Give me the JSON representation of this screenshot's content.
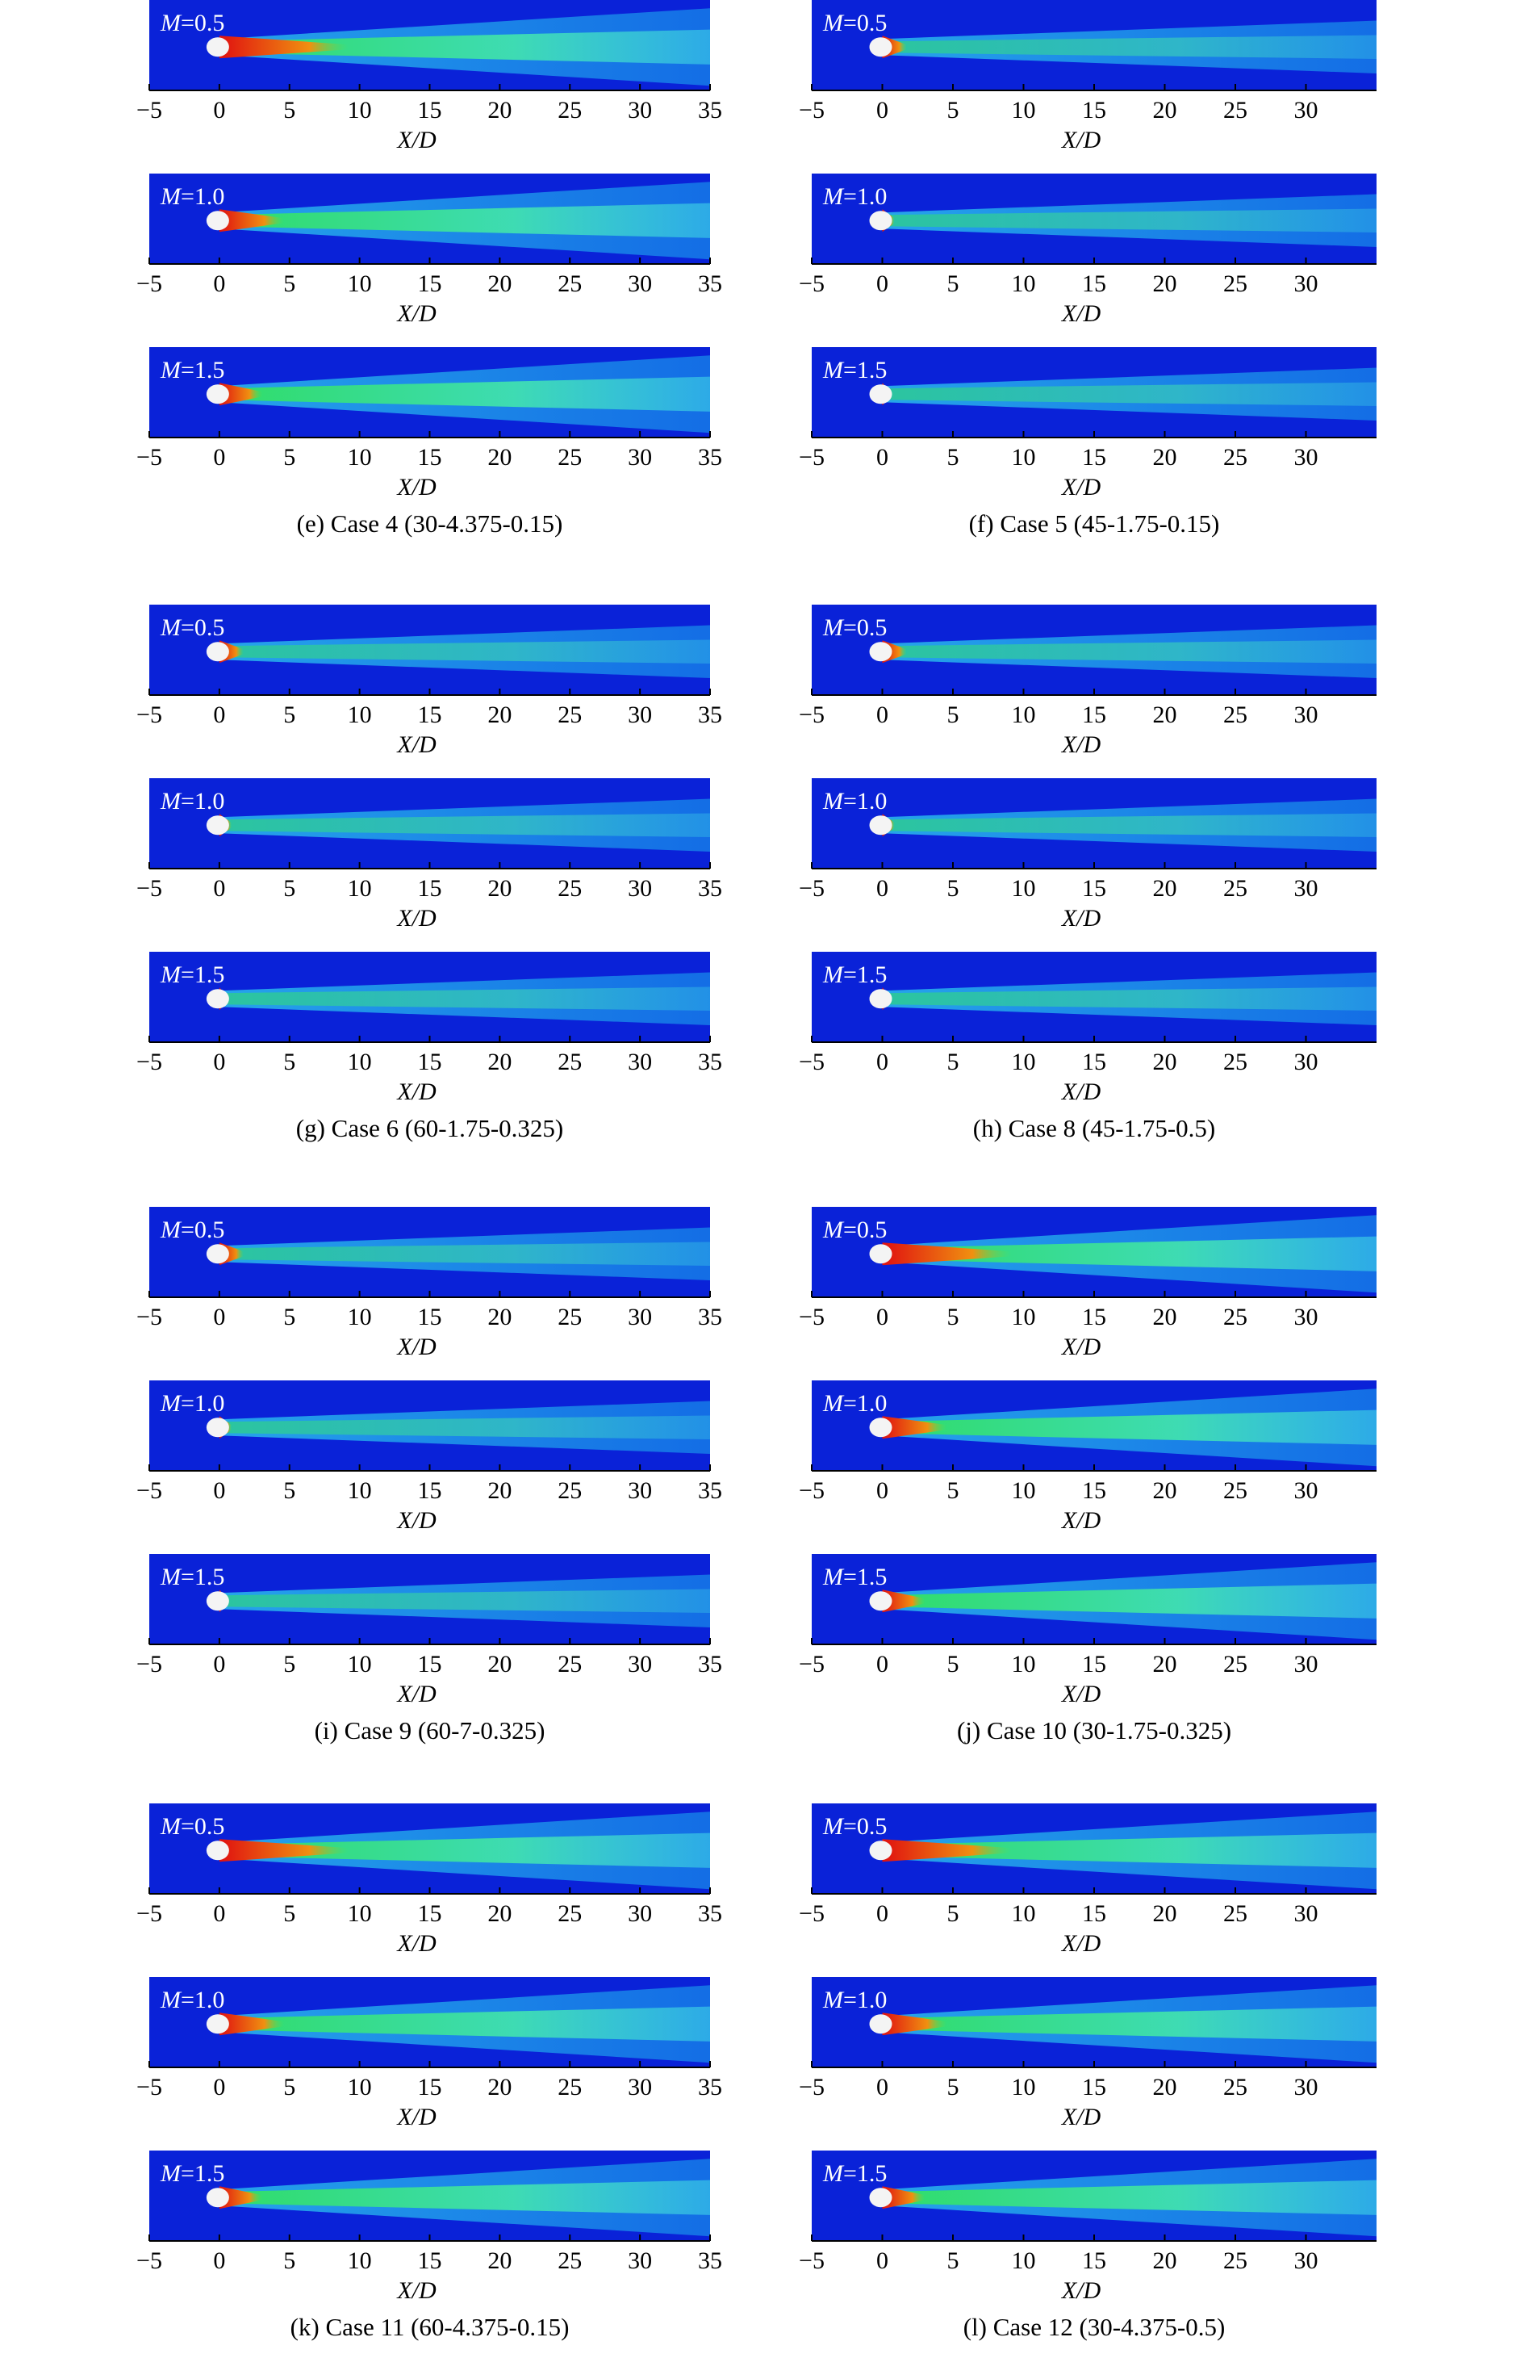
{
  "panels": [
    {
      "caption": "(e) Case 4 (30-4.375-0.15)",
      "xlim": [
        -5,
        35
      ],
      "xticks": [
        {
          "value": -5,
          "label": "−5"
        },
        0,
        5,
        10,
        15,
        20,
        25,
        30,
        35
      ],
      "xlabel": "X/D",
      "plots": [
        {
          "var": "M",
          "eq": "=0.5"
        },
        {
          "var": "M",
          "eq": "=1.0"
        },
        {
          "var": "M",
          "eq": "=1.5"
        }
      ]
    },
    {
      "caption": "(f) Case 5 (45-1.75-0.15)",
      "xlim": [
        -5,
        35
      ],
      "xticks": [
        {
          "value": -5,
          "label": "−5"
        },
        0,
        5,
        10,
        15,
        20,
        25,
        30
      ],
      "xlabel": "X/D",
      "plots": [
        {
          "var": "M",
          "eq": "=0.5"
        },
        {
          "var": "M",
          "eq": "=1.0"
        },
        {
          "var": "M",
          "eq": "=1.5"
        }
      ]
    },
    {
      "caption": "(g) Case 6 (60-1.75-0.325)",
      "xlim": [
        -5,
        35
      ],
      "xticks": [
        {
          "value": -5,
          "label": "−5"
        },
        0,
        5,
        10,
        15,
        20,
        25,
        30,
        35
      ],
      "xlabel": "X/D",
      "plots": [
        {
          "var": "M",
          "eq": "=0.5"
        },
        {
          "var": "M",
          "eq": "=1.0"
        },
        {
          "var": "M",
          "eq": "=1.5"
        }
      ]
    },
    {
      "caption": "(h) Case 8 (45-1.75-0.5)",
      "xlim": [
        -5,
        35
      ],
      "xticks": [
        {
          "value": -5,
          "label": "−5"
        },
        0,
        5,
        10,
        15,
        20,
        25,
        30
      ],
      "xlabel": "X/D",
      "plots": [
        {
          "var": "M",
          "eq": "=0.5"
        },
        {
          "var": "M",
          "eq": "=1.0"
        },
        {
          "var": "M",
          "eq": "=1.5"
        }
      ]
    },
    {
      "caption": "(i) Case 9 (60-7-0.325)",
      "xlim": [
        -5,
        35
      ],
      "xticks": [
        {
          "value": -5,
          "label": "−5"
        },
        0,
        5,
        10,
        15,
        20,
        25,
        30,
        35
      ],
      "xlabel": "X/D",
      "plots": [
        {
          "var": "M",
          "eq": "=0.5"
        },
        {
          "var": "M",
          "eq": "=1.0"
        },
        {
          "var": "M",
          "eq": "=1.5"
        }
      ]
    },
    {
      "caption": "(j) Case 10 (30-1.75-0.325)",
      "xlim": [
        -5,
        35
      ],
      "xticks": [
        {
          "value": -5,
          "label": "−5"
        },
        0,
        5,
        10,
        15,
        20,
        25,
        30
      ],
      "xlabel": "X/D",
      "plots": [
        {
          "var": "M",
          "eq": "=0.5"
        },
        {
          "var": "M",
          "eq": "=1.0"
        },
        {
          "var": "M",
          "eq": "=1.5"
        }
      ]
    },
    {
      "caption": "(k) Case 11 (60-4.375-0.15)",
      "xlim": [
        -5,
        35
      ],
      "xticks": [
        {
          "value": -5,
          "label": "−5"
        },
        0,
        5,
        10,
        15,
        20,
        25,
        30,
        35
      ],
      "xlabel": "X/D",
      "plots": [
        {
          "var": "M",
          "eq": "=0.5"
        },
        {
          "var": "M",
          "eq": "=1.0"
        },
        {
          "var": "M",
          "eq": "=1.5"
        }
      ]
    },
    {
      "caption": "(l) Case 12 (30-4.375-0.5)",
      "xlim": [
        -5,
        35
      ],
      "xticks": [
        {
          "value": -5,
          "label": "−5"
        },
        0,
        5,
        10,
        15,
        20,
        25,
        30
      ],
      "xlabel": "X/D",
      "plots": [
        {
          "var": "M",
          "eq": "=0.5"
        },
        {
          "var": "M",
          "eq": "=1.0"
        },
        {
          "var": "M",
          "eq": "=1.5"
        }
      ]
    }
  ]
}
